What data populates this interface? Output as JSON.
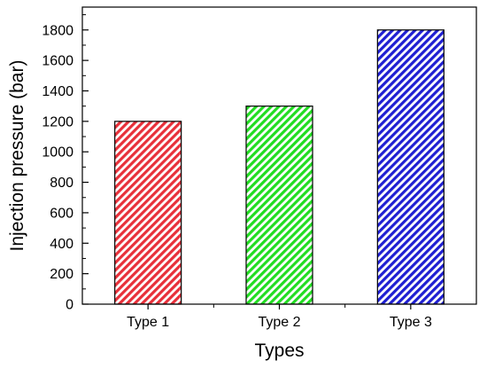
{
  "chart_data": {
    "type": "bar",
    "categories": [
      "Type 1",
      "Type 2",
      "Type 3"
    ],
    "values": [
      1200,
      1300,
      1800
    ],
    "xlabel": "Types",
    "ylabel": "Injection pressure (bar)",
    "ylim": [
      0,
      1950
    ],
    "yticks": [
      0,
      200,
      400,
      600,
      800,
      1000,
      1200,
      1400,
      1600,
      1800
    ],
    "grid": false,
    "bar_colors": [
      "#e8303a",
      "#22dd22",
      "#1f1fd2"
    ],
    "bar_fill": "diagonal hatch"
  }
}
